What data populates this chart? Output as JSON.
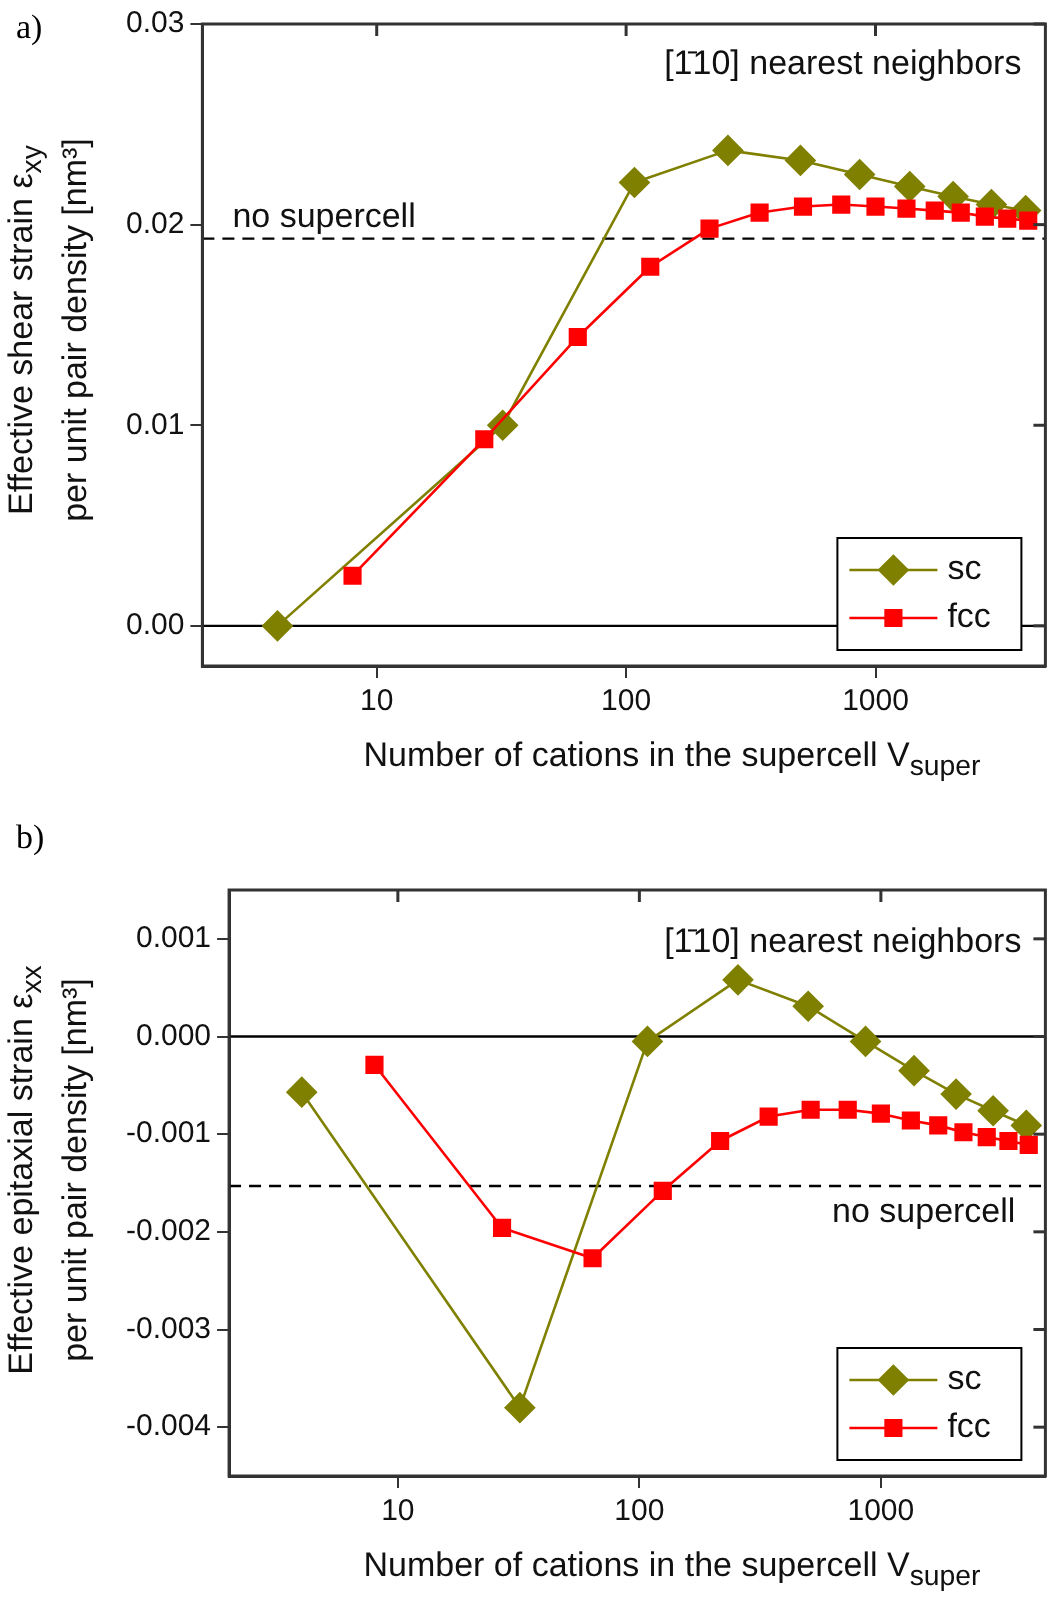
{
  "chart_data": [
    {
      "type": "line",
      "xlabel": "Number of cations in the supercell V$_{super}$",
      "ylabel": "Effective shear strain ε$_{xy}$\nper unit pair density [nm³]",
      "log": "x",
      "xlim": [
        2,
        4800
      ],
      "xticks": [
        10,
        100,
        1000
      ],
      "ylim": [
        -0.002,
        0.03
      ],
      "yticks": [
        {
          "value": 0,
          "label": "0.00"
        },
        {
          "value": 0.01,
          "label": "0.01"
        },
        {
          "value": 0.02,
          "label": "0.02"
        },
        {
          "value": 0.03,
          "label": "0.03"
        }
      ],
      "grid": false,
      "legend": "bottom right",
      "annotations": [
        "a)",
        "[1̄10] nearest neighbors"
      ],
      "ref_lines": [
        {
          "axis": "y",
          "value": 0,
          "line_style": "solid",
          "color": "#000000"
        },
        {
          "axis": "y",
          "value": 0.0193,
          "label": "no supercell",
          "line_style": "dashed",
          "color": "#000000"
        }
      ],
      "series": [
        {
          "name": "sc",
          "color": "#808000",
          "marker": "diamond",
          "x": [
            4,
            32,
            108,
            256,
            500,
            864,
            1372,
            2048,
            2916,
            4000
          ],
          "values": [
            0,
            0.01,
            0.0221,
            0.0237,
            0.0232,
            0.0225,
            0.0219,
            0.0214,
            0.021,
            0.0207
          ]
        },
        {
          "name": "fcc",
          "color": "#ff0000",
          "marker": "square",
          "x": [
            8,
            27,
            64,
            125,
            216,
            343,
            512,
            729,
            1000,
            1331,
            1728,
            2197,
            2744,
            3375,
            4096
          ],
          "values": [
            0.0025,
            0.0093,
            0.0144,
            0.0179,
            0.0198,
            0.0206,
            0.0209,
            0.021,
            0.0209,
            0.0208,
            0.0207,
            0.0206,
            0.0204,
            0.0203,
            0.0202
          ]
        }
      ]
    },
    {
      "type": "line",
      "xlabel": "Number of cations in the supercell V$_{super}$",
      "ylabel": "Effective epitaxial strain ε$_{xx}$\nper unit pair density [nm³]",
      "log": "x",
      "xlim": [
        2,
        4800
      ],
      "xticks": [
        10,
        100,
        1000
      ],
      "ylim": [
        -0.0045,
        0.0015
      ],
      "yticks": [
        {
          "value": -0.004,
          "label": "-0.004"
        },
        {
          "value": -0.003,
          "label": "-0.003"
        },
        {
          "value": -0.002,
          "label": "-0.002"
        },
        {
          "value": -0.001,
          "label": "-0.001"
        },
        {
          "value": 0,
          "label": "0.000"
        },
        {
          "value": 0.001,
          "label": "0.001"
        }
      ],
      "grid": false,
      "legend": "bottom right",
      "annotations": [
        "b)",
        "[1̄10] nearest neighbors"
      ],
      "ref_lines": [
        {
          "axis": "y",
          "value": 0,
          "line_style": "solid",
          "color": "#000000"
        },
        {
          "axis": "y",
          "value": -0.00153,
          "label": "no supercell",
          "line_style": "dashed",
          "color": "#000000"
        }
      ],
      "series": [
        {
          "name": "sc",
          "color": "#808000",
          "marker": "diamond",
          "x": [
            4,
            32,
            108,
            256,
            500,
            864,
            1372,
            2048,
            2916,
            4000
          ],
          "values": [
            -0.00057,
            -0.0038,
            -5e-05,
            0.00058,
            0.00031,
            -5e-05,
            -0.00035,
            -0.00059,
            -0.00076,
            -0.00091
          ]
        },
        {
          "name": "fcc",
          "color": "#ff0000",
          "marker": "square",
          "x": [
            8,
            27,
            64,
            125,
            216,
            343,
            512,
            729,
            1000,
            1331,
            1728,
            2197,
            2744,
            3375,
            4096
          ],
          "values": [
            -0.00029,
            -0.00196,
            -0.00227,
            -0.00158,
            -0.00107,
            -0.00082,
            -0.00075,
            -0.00075,
            -0.00079,
            -0.00086,
            -0.00091,
            -0.00098,
            -0.00103,
            -0.00107,
            -0.00111
          ]
        }
      ]
    }
  ]
}
